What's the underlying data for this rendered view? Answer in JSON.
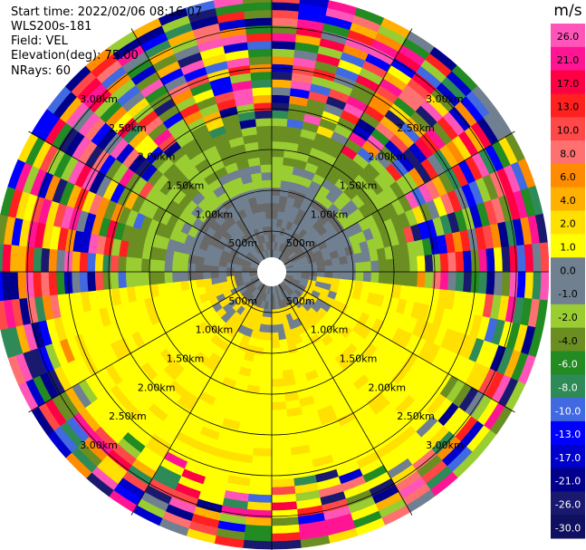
{
  "info": {
    "start_time": "Start time: 2022/02/06 08:16:07",
    "station": "WLS200s-181",
    "field": "Field: VEL",
    "elevation": "Elevation(deg): 75.00",
    "nrays": "NRays: 60"
  },
  "plot": {
    "type": "ppi",
    "range_ring_labels": [
      "500m",
      "1.00km",
      "1.50km",
      "2.00km",
      "2.50km",
      "3.00km"
    ],
    "range_rings_km": [
      0.5,
      1.0,
      1.5,
      2.0,
      2.5,
      3.0
    ],
    "max_range_km": 3.4,
    "n_rays": 60
  },
  "colorbar": {
    "unit": "m/s",
    "ticks": [
      "26.0",
      "21.0",
      "17.0",
      "13.0",
      "10.0",
      "8.0",
      "6.0",
      "4.0",
      "2.0",
      "1.0",
      "0.0",
      "-1.0",
      "-2.0",
      "-4.0",
      "-6.0",
      "-8.0",
      "-10.0",
      "-13.0",
      "-17.0",
      "-21.0",
      "-26.0",
      "-30.0"
    ],
    "colors": [
      "#ff55b8",
      "#ff1493",
      "#ff0044",
      "#ff2020",
      "#ff4848",
      "#ff7070",
      "#ff8c00",
      "#ffb000",
      "#ffe000",
      "#ffff00",
      "#708090",
      "#708090",
      "#9acd32",
      "#6b8e23",
      "#228b22",
      "#2e8b57",
      "#4169e1",
      "#0000ff",
      "#0000cd",
      "#00008b",
      "#191970",
      "#101060"
    ]
  }
}
